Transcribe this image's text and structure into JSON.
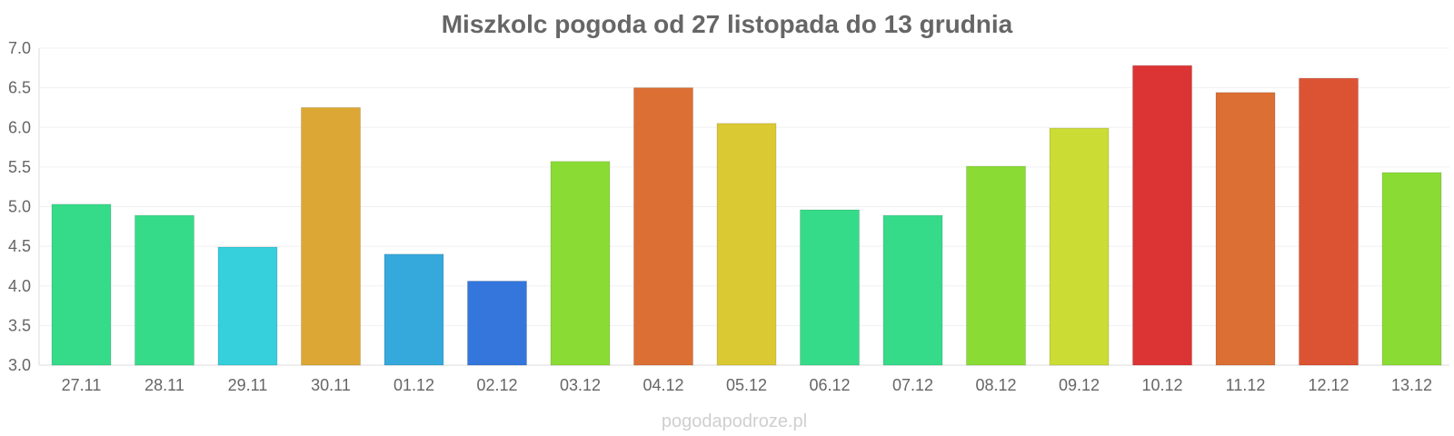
{
  "chart_data": {
    "type": "bar",
    "title": "Miszkolc pogoda od 27 listopada do 13 grudnia",
    "xlabel": "",
    "ylabel": "",
    "ylim": [
      3.0,
      7.0
    ],
    "y_ticks": [
      "3.0",
      "3.5",
      "4.0",
      "4.5",
      "5.0",
      "5.5",
      "6.0",
      "6.5",
      "7.0"
    ],
    "grid": true,
    "categories": [
      "27.11",
      "28.11",
      "29.11",
      "30.11",
      "01.12",
      "02.12",
      "03.12",
      "04.12",
      "05.12",
      "06.12",
      "07.12",
      "08.12",
      "09.12",
      "10.12",
      "11.12",
      "12.12",
      "13.12"
    ],
    "values": [
      5.03,
      4.89,
      4.49,
      6.25,
      4.4,
      4.06,
      5.57,
      6.5,
      6.05,
      4.96,
      4.89,
      5.51,
      5.99,
      6.78,
      6.44,
      6.62,
      5.43
    ],
    "colors": [
      "#36db8a",
      "#36db8a",
      "#36cfdc",
      "#dca734",
      "#35a8dc",
      "#3476dc",
      "#8adc35",
      "#dc6f34",
      "#dbc933",
      "#36db8a",
      "#36db8a",
      "#8adc35",
      "#cbdc34",
      "#dc3434",
      "#dc6f34",
      "#dc5334",
      "#8adc35"
    ]
  },
  "watermark": "pogodapodroze.pl"
}
